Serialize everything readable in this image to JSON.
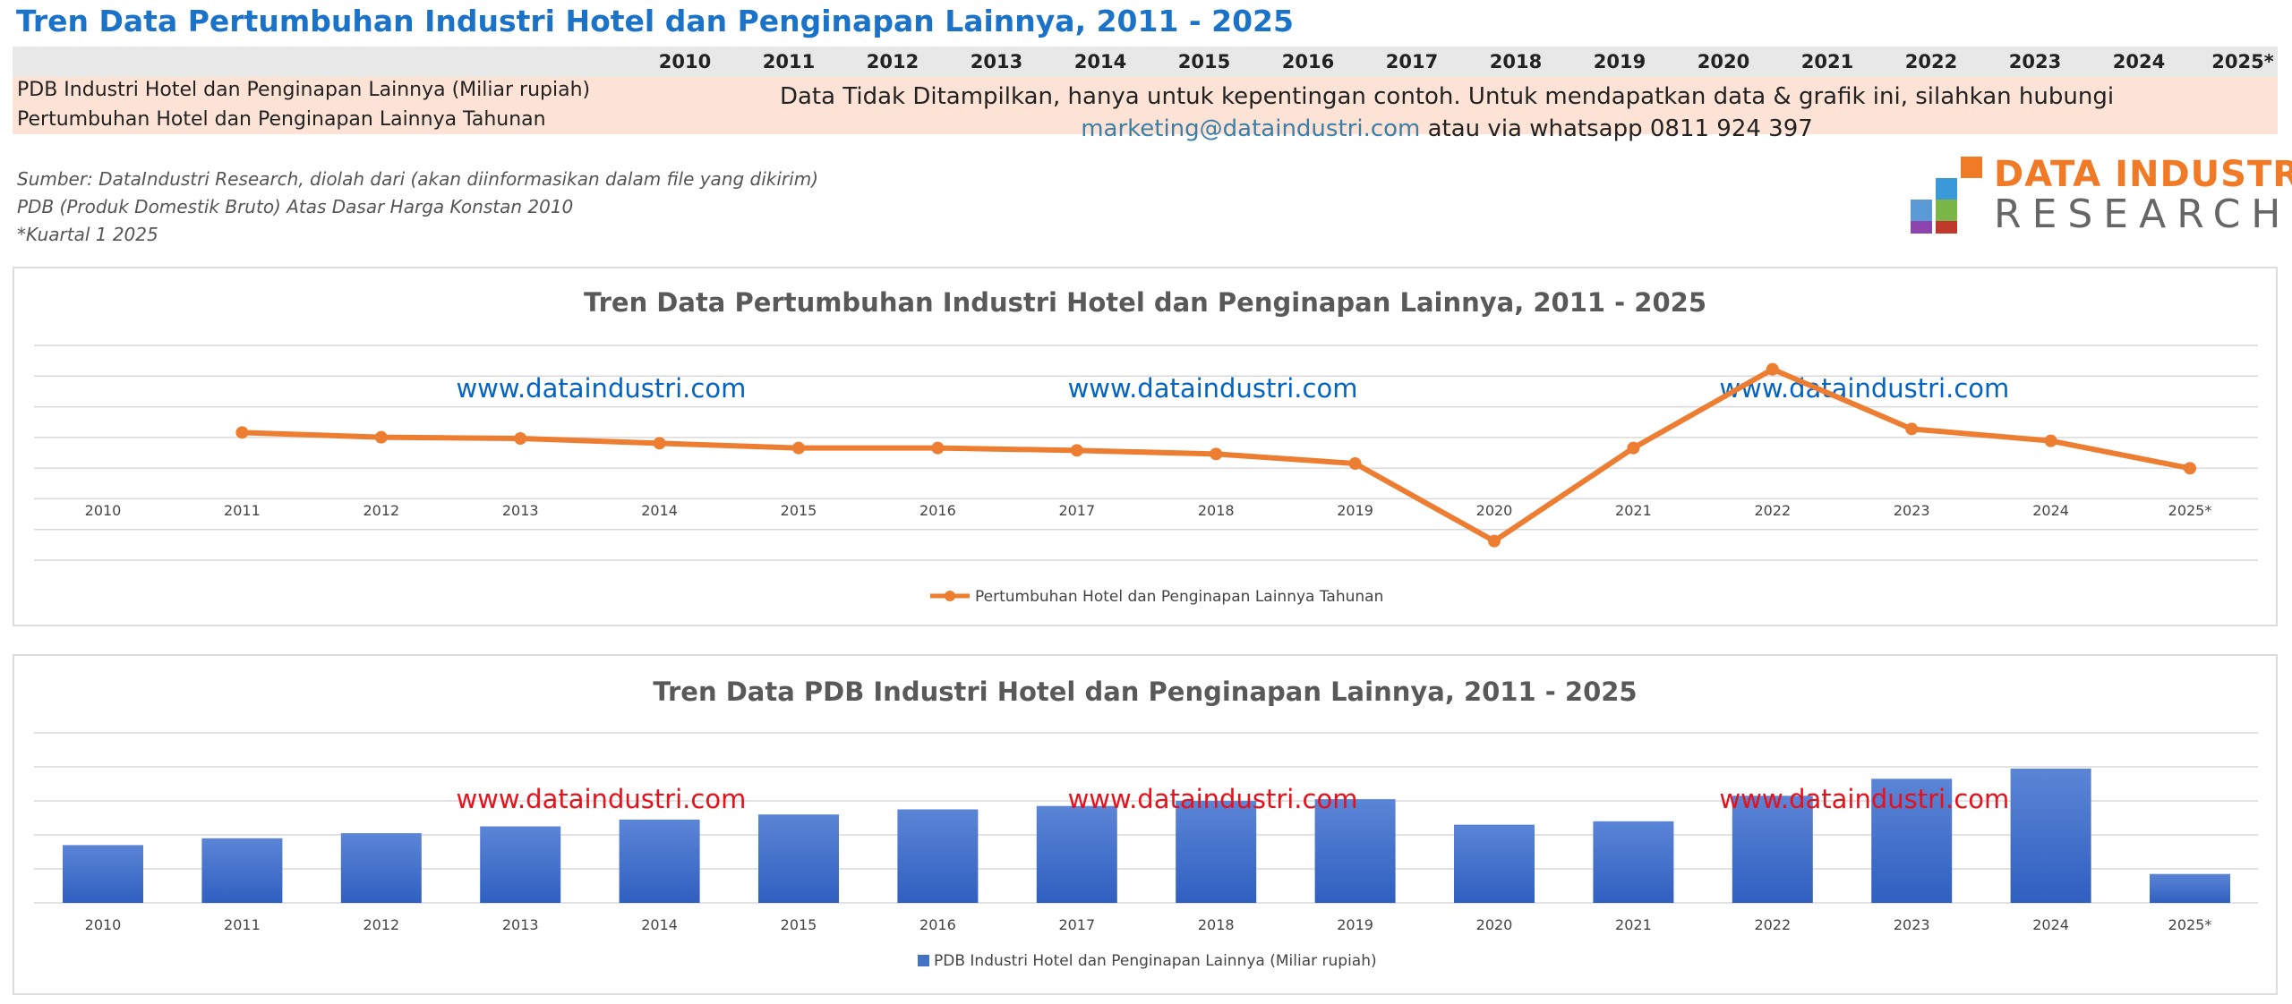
{
  "page_title": "Tren Data Pertumbuhan Industri Hotel dan Penginapan Lainnya, 2011 - 2025",
  "table": {
    "years": [
      "2010",
      "2011",
      "2012",
      "2013",
      "2014",
      "2015",
      "2016",
      "2017",
      "2018",
      "2019",
      "2020",
      "2021",
      "2022",
      "2023",
      "2024",
      "2025*"
    ],
    "rows": [
      "PDB Industri Hotel dan Penginapan Lainnya (Miliar rupiah)",
      "Pertumbuhan Hotel dan Penginapan Lainnya Tahunan"
    ],
    "notice_line1": "Data Tidak Ditampilkan, hanya untuk kepentingan contoh. Untuk mendapatkan data & grafik  ini, silahkan hubungi",
    "notice_email": "marketing@dataindustri.com",
    "notice_rest": " atau via whatsapp 0811 924 397"
  },
  "sources": [
    "Sumber: DataIndustri Research, diolah dari (akan diinformasikan dalam file yang dikirim)",
    "PDB (Produk Domestik Bruto) Atas Dasar Harga Konstan 2010",
    "*Kuartal 1 2025"
  ],
  "logo": {
    "line1": "DATA INDUSTRI",
    "line2": "RESEARCH"
  },
  "colors": {
    "title_blue": "#1a73c8",
    "line_orange": "#ed7d31",
    "bar_blue": "#4472c4",
    "watermark_blue": "#0563c1",
    "watermark_red": "#e8101a",
    "data_band": "#fde3d6",
    "header_band": "#e8e8e8"
  },
  "chart_data": [
    {
      "type": "line",
      "title": "Tren Data Pertumbuhan Industri Hotel dan Penginapan Lainnya, 2011 - 2025",
      "categories": [
        "2010",
        "2011",
        "2012",
        "2013",
        "2014",
        "2015",
        "2016",
        "2017",
        "2018",
        "2019",
        "2020",
        "2021",
        "2022",
        "2023",
        "2024",
        "2025*"
      ],
      "series": [
        {
          "name": "Pertumbuhan Hotel dan Penginapan Lainnya Tahunan",
          "values": [
            null,
            4.7,
            4.3,
            4.2,
            3.8,
            3.4,
            3.4,
            3.2,
            2.9,
            2.1,
            -4.4,
            3.4,
            10.0,
            5.0,
            4.0,
            1.7
          ]
        }
      ],
      "ylim": [
        -6,
        12
      ],
      "axis_values_hidden": true,
      "grid": true,
      "legend_position": "bottom",
      "watermark": "www.dataindustri.com"
    },
    {
      "type": "bar",
      "title": "Tren Data PDB Industri Hotel dan Penginapan Lainnya, 2011 - 2025",
      "categories": [
        "2010",
        "2011",
        "2012",
        "2013",
        "2014",
        "2015",
        "2016",
        "2017",
        "2018",
        "2019",
        "2020",
        "2021",
        "2022",
        "2023",
        "2024",
        "2025*"
      ],
      "series": [
        {
          "name": "PDB Industri Hotel dan Penginapan Lainnya (Miliar rupiah)",
          "values": [
            34,
            38,
            41,
            45,
            49,
            52,
            55,
            57,
            60,
            61,
            46,
            48,
            63,
            73,
            79,
            17
          ]
        }
      ],
      "ylim": [
        0,
        100
      ],
      "axis_values_hidden": true,
      "grid": true,
      "legend_position": "bottom",
      "watermark": "www.dataindustri.com"
    }
  ]
}
